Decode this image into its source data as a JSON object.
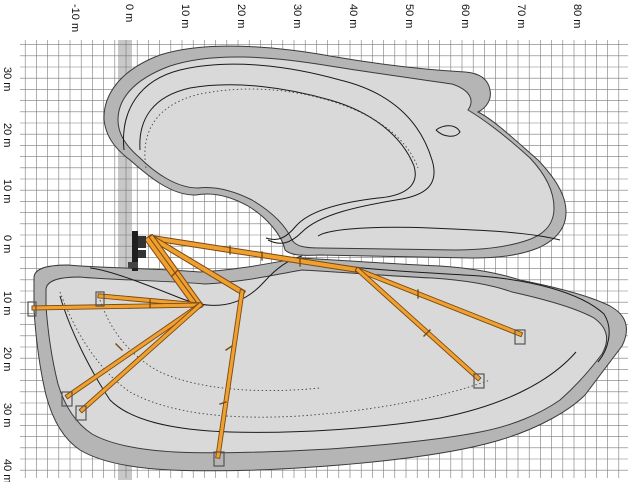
{
  "top_axis": {
    "labels": [
      "-10 m",
      "0 m",
      "10 m",
      "20 m",
      "30 m",
      "40 m",
      "50 m",
      "60 m",
      "70 m",
      "80 m"
    ]
  },
  "left_axis": {
    "labels": [
      "30 m",
      "20 m",
      "10 m",
      "0 m",
      "10 m",
      "20 m",
      "30 m",
      "40 m"
    ]
  },
  "colors": {
    "grid": "#7a7a7a",
    "envelope_fill": "#d9d9d9",
    "envelope_outer": "#b5b5b5",
    "envelope_stroke": "#3a3a3a",
    "boom": "#f0a030",
    "boom_edge": "#7a4a10",
    "crane_body": "#2a2a2a",
    "ground_band": "#c8c8c8"
  },
  "icons": [
    "crane-base-icon"
  ]
}
